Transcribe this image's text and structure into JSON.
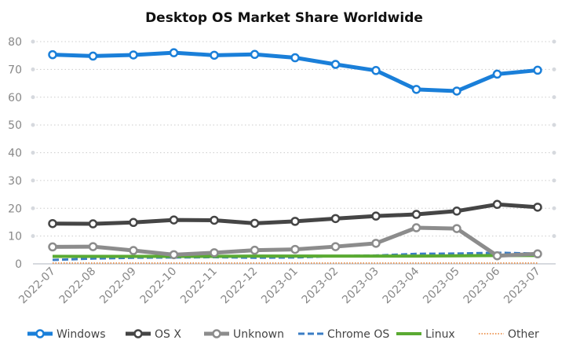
{
  "chart_data": {
    "type": "line",
    "title": "Desktop OS Market Share Worldwide",
    "xlabel": "",
    "ylabel": "",
    "ylim": [
      0,
      80
    ],
    "yticks": [
      "0",
      "10",
      "20",
      "30",
      "40",
      "50",
      "60",
      "70",
      "80"
    ],
    "grid": true,
    "legend_position": "bottom",
    "categories": [
      "2022-07",
      "2022-08",
      "2022-09",
      "2022-10",
      "2022-11",
      "2022-12",
      "2023-01",
      "2023-02",
      "2023-03",
      "2023-04",
      "2023-05",
      "2023-06",
      "2023-07"
    ],
    "series": [
      {
        "name": "Windows",
        "color": "#1a7fd9",
        "style": "solid-marker",
        "values": [
          75.3,
          74.8,
          75.2,
          76.0,
          75.1,
          75.4,
          74.2,
          71.8,
          69.6,
          62.8,
          62.2,
          68.3,
          69.7
        ]
      },
      {
        "name": "OS X",
        "color": "#454545",
        "style": "solid-marker",
        "values": [
          14.5,
          14.4,
          14.9,
          15.8,
          15.7,
          14.6,
          15.3,
          16.3,
          17.2,
          17.8,
          19.0,
          21.4,
          20.4
        ]
      },
      {
        "name": "Unknown",
        "color": "#8c8c8c",
        "style": "solid-marker",
        "values": [
          6.1,
          6.2,
          4.8,
          3.3,
          4.0,
          4.9,
          5.2,
          6.2,
          7.4,
          13.0,
          12.7,
          2.9,
          3.6
        ]
      },
      {
        "name": "Chrome OS",
        "color": "#3b7dc4",
        "style": "dashed",
        "values": [
          1.4,
          1.9,
          2.2,
          2.3,
          2.4,
          2.2,
          2.3,
          2.8,
          3.0,
          3.6,
          3.7,
          4.0,
          3.7
        ]
      },
      {
        "name": "Linux",
        "color": "#5aaa32",
        "style": "solid",
        "values": [
          2.7,
          2.7,
          2.7,
          2.7,
          2.7,
          2.8,
          2.8,
          2.8,
          2.8,
          2.8,
          2.9,
          3.0,
          3.0
        ]
      },
      {
        "name": "Other",
        "color": "#e87d2c",
        "style": "dotted",
        "values": [
          0.3,
          0.3,
          0.3,
          0.3,
          0.3,
          0.3,
          0.3,
          0.3,
          0.3,
          0.3,
          0.3,
          0.3,
          0.3
        ]
      }
    ]
  }
}
